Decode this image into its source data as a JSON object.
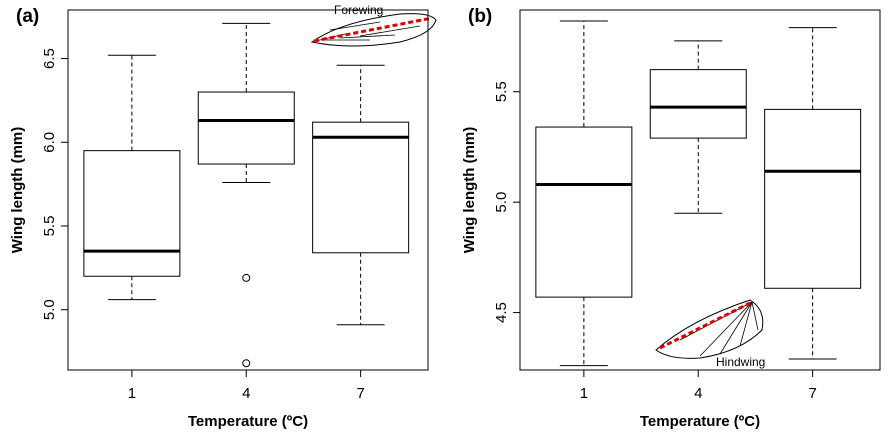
{
  "chart_data": [
    {
      "type": "box",
      "label": "(a)",
      "annotation": "Forewing",
      "x_label": "Temperature (ºC)",
      "y_label": "Wing length (mm)",
      "categories": [
        "1",
        "4",
        "7"
      ],
      "boxes": [
        {
          "whisker_low": 5.06,
          "q1": 5.2,
          "median": 5.35,
          "q3": 5.95,
          "whisker_high": 6.52,
          "outliers": []
        },
        {
          "whisker_low": 5.76,
          "q1": 5.87,
          "median": 6.13,
          "q3": 6.3,
          "whisker_high": 6.71,
          "outliers": [
            5.19,
            4.68
          ]
        },
        {
          "whisker_low": 4.91,
          "q1": 5.34,
          "median": 6.03,
          "q3": 6.12,
          "whisker_high": 6.46,
          "outliers": []
        }
      ],
      "ylim": [
        4.64,
        6.79
      ],
      "yticks": [
        {
          "value": 5,
          "label": "5.0"
        },
        5.5,
        {
          "value": 6,
          "label": "6.0"
        },
        6.5
      ]
    },
    {
      "type": "box",
      "label": "(b)",
      "annotation": "Hindwing",
      "x_label": "Temperature (ºC)",
      "y_label": "Wing length (mm)",
      "categories": [
        "1",
        "4",
        "7"
      ],
      "boxes": [
        {
          "whisker_low": 4.26,
          "q1": 4.57,
          "median": 5.08,
          "q3": 5.34,
          "whisker_high": 5.82,
          "outliers": []
        },
        {
          "whisker_low": 4.95,
          "q1": 5.29,
          "median": 5.43,
          "q3": 5.6,
          "whisker_high": 5.73,
          "outliers": []
        },
        {
          "whisker_low": 4.29,
          "q1": 4.61,
          "median": 5.14,
          "q3": 5.42,
          "whisker_high": 5.79,
          "outliers": []
        }
      ],
      "ylim": [
        4.24,
        5.87
      ],
      "yticks": [
        4.5,
        {
          "value": 5,
          "label": "5.0"
        },
        5.5
      ]
    }
  ]
}
